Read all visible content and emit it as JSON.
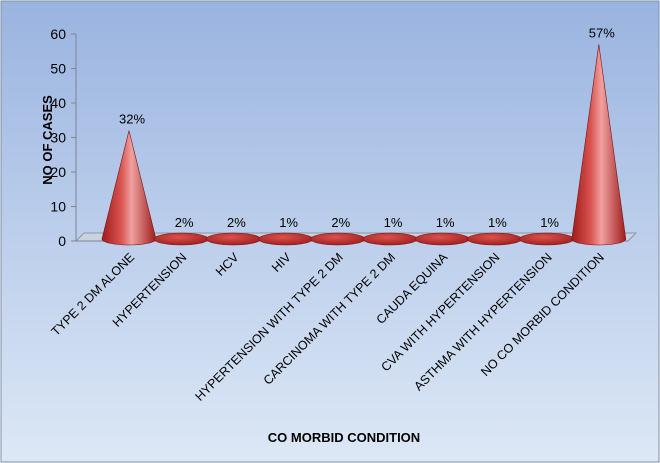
{
  "chart_data": {
    "type": "bar",
    "style": "3d-cone",
    "title": "",
    "xlabel": "CO MORBID CONDITION",
    "ylabel": "NO OF CASES",
    "ylim": [
      0,
      60
    ],
    "yticks": [
      0,
      10,
      20,
      30,
      40,
      50,
      60
    ],
    "grid": false,
    "legend": "none",
    "categories": [
      "TYPE 2 DM ALONE",
      "HYPERTENSION",
      "HCV",
      "HIV",
      "HYPERTENSION WITH TYPE 2 DM",
      "CARCINOMA WITH TYPE 2 DM",
      "CAUDA EQUINA",
      "CVA WITH HYPERTENSION",
      "ASTHMA WITH HYPERTENSION",
      "NO CO MORBID CONDITION"
    ],
    "values": [
      32,
      2,
      2,
      1,
      2,
      1,
      1,
      1,
      1,
      57
    ],
    "data_labels": [
      "32%",
      "2%",
      "2%",
      "1%",
      "2%",
      "1%",
      "1%",
      "1%",
      "1%",
      "57%"
    ],
    "colors": {
      "background_top": "#9ab4e0",
      "background_bottom": "#dde8f6",
      "cone_dark": "#9e1c1c",
      "cone_mid": "#d9534f",
      "cone_light": "#f0a0a0",
      "floor": "#c9d3de"
    }
  }
}
